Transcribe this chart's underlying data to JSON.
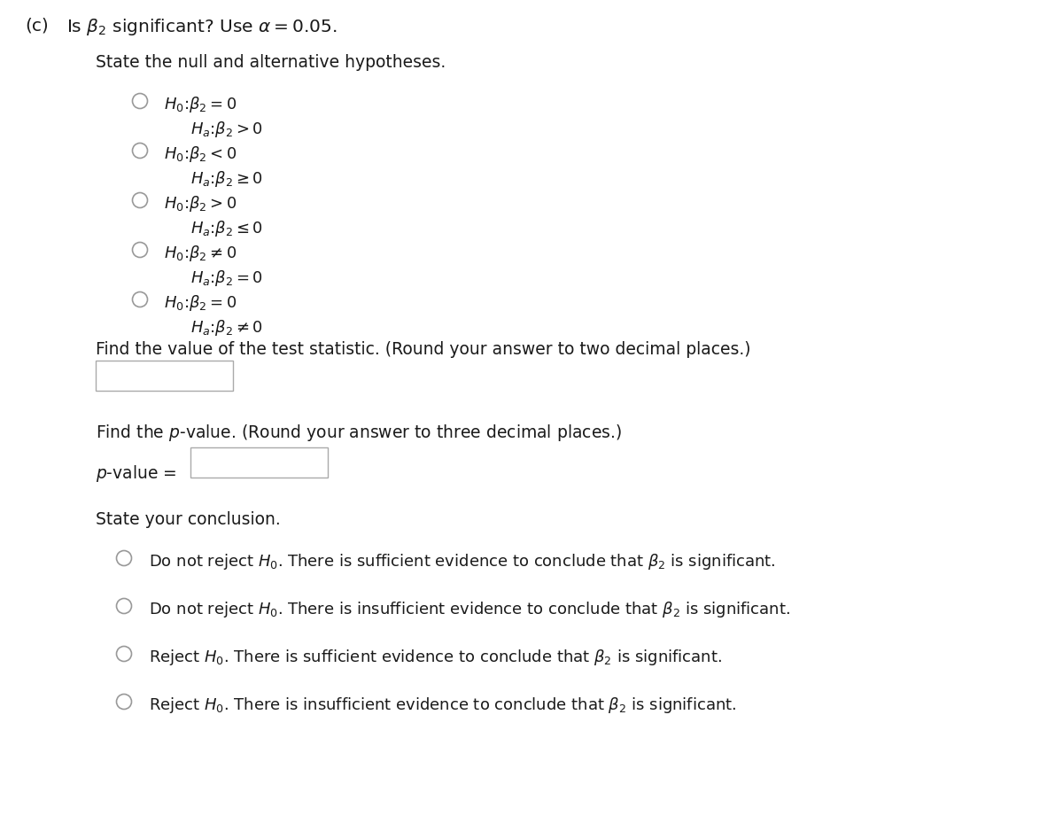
{
  "background_color": "#ffffff",
  "title_c": "(c)  ",
  "title_rest": "Is $\\beta_2$ significant? Use $\\alpha = 0.05$.",
  "section1_title": "State the null and alternative hypotheses.",
  "radio_options": [
    [
      "$H_0\\colon \\beta_2 = 0$",
      "$H_a\\colon \\beta_2 > 0$"
    ],
    [
      "$H_0\\colon \\beta_2 < 0$",
      "$H_a\\colon \\beta_2 \\geq 0$"
    ],
    [
      "$H_0\\colon \\beta_2 > 0$",
      "$H_a\\colon \\beta_2 \\leq 0$"
    ],
    [
      "$H_0\\colon \\beta_2 \\neq 0$",
      "$H_a\\colon \\beta_2 = 0$"
    ],
    [
      "$H_0\\colon \\beta_2 = 0$",
      "$H_a\\colon \\beta_2 \\neq 0$"
    ]
  ],
  "test_stat_label1": "Find the value of the test statistic. (Round your answer to two decimal places.)",
  "pvalue_label1": "Find the ",
  "pvalue_label2": "$p$",
  "pvalue_label3": "-value. (Round your answer to three decimal places.)",
  "pvalue_prefix1": "$p$",
  "pvalue_prefix2": "-value = ",
  "conclusion_title": "State your conclusion.",
  "conclusion_options": [
    [
      "Do not reject $H_0$. There is sufficient evidence to conclude that $\\beta_2$ is significant."
    ],
    [
      "Do not reject $H_0$. There is insufficient evidence to conclude that $\\beta_2$ is significant."
    ],
    [
      "Reject $H_0$. There is sufficient evidence to conclude that $\\beta_2$ is significant."
    ],
    [
      "Reject $H_0$. There is insufficient evidence to conclude that $\\beta_2$ is significant."
    ]
  ],
  "font_size_title": 14.5,
  "font_size_body": 13.5,
  "font_size_options": 13,
  "text_color": "#1a1a1a",
  "circle_color": "#999999",
  "box_edge_color": "#aaaaaa"
}
